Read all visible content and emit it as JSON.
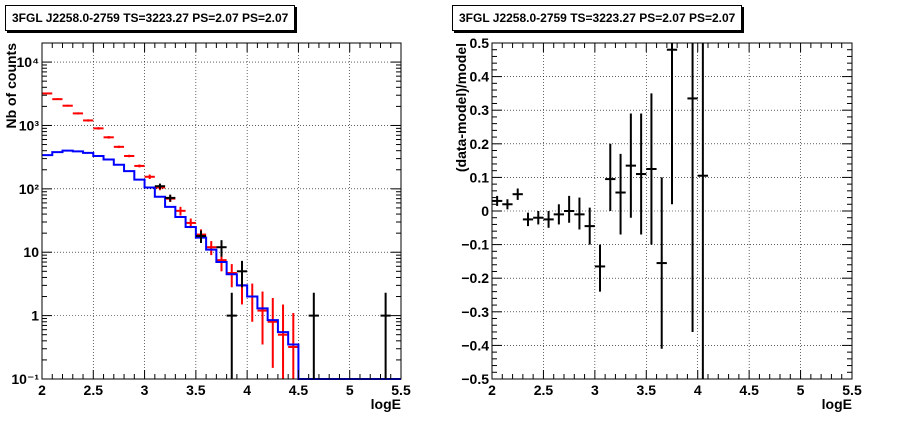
{
  "chart_data": [
    {
      "type": "line",
      "title": "3FGL J2258.0-2759 TS=3223.27 PS=2.07 PS=2.07",
      "xlabel": "logE",
      "ylabel": "Nb of counts",
      "xlim": [
        2,
        5.5
      ],
      "ylim": [
        0.1,
        20000
      ],
      "yscale": "log",
      "grid": true,
      "xticks": [
        "2",
        "2.5",
        "3",
        "3.5",
        "4",
        "4.5",
        "5",
        "5.5"
      ],
      "yticks": [
        {
          "value": 0.1,
          "label": "10⁻¹"
        },
        {
          "value": 1,
          "label": "1"
        },
        {
          "value": 10,
          "label": "10"
        },
        {
          "value": 100,
          "label": "10²"
        },
        {
          "value": 1000,
          "label": "10³"
        },
        {
          "value": 10000,
          "label": "10⁴"
        }
      ],
      "series": [
        {
          "color": "#ff0000",
          "style": "markers-errors",
          "points": [
            {
              "x": 2.05,
              "y": 3200,
              "lo": 3100,
              "hi": 3300
            },
            {
              "x": 2.15,
              "y": 2600,
              "lo": 2520,
              "hi": 2690
            },
            {
              "x": 2.25,
              "y": 2050,
              "lo": 1980,
              "hi": 2120
            },
            {
              "x": 2.35,
              "y": 1550,
              "lo": 1490,
              "hi": 1610
            },
            {
              "x": 2.45,
              "y": 1200,
              "lo": 1150,
              "hi": 1250
            },
            {
              "x": 2.55,
              "y": 900,
              "lo": 860,
              "hi": 940
            },
            {
              "x": 2.65,
              "y": 650,
              "lo": 620,
              "hi": 680
            },
            {
              "x": 2.75,
              "y": 460,
              "lo": 440,
              "hi": 480
            },
            {
              "x": 2.85,
              "y": 330,
              "lo": 315,
              "hi": 345
            },
            {
              "x": 2.95,
              "y": 230,
              "lo": 218,
              "hi": 242
            },
            {
              "x": 3.05,
              "y": 155,
              "lo": 143,
              "hi": 168
            },
            {
              "x": 3.15,
              "y": 105,
              "lo": 95,
              "hi": 115
            },
            {
              "x": 3.25,
              "y": 70,
              "lo": 62,
              "hi": 78
            },
            {
              "x": 3.35,
              "y": 45,
              "lo": 38,
              "hi": 52
            },
            {
              "x": 3.45,
              "y": 29,
              "lo": 24,
              "hi": 34
            },
            {
              "x": 3.55,
              "y": 19,
              "lo": 15,
              "hi": 23
            },
            {
              "x": 3.65,
              "y": 12,
              "lo": 9,
              "hi": 15
            },
            {
              "x": 3.75,
              "y": 7.5,
              "lo": 5,
              "hi": 10
            },
            {
              "x": 3.85,
              "y": 4.7,
              "lo": 2.8,
              "hi": 6.5
            },
            {
              "x": 3.95,
              "y": 3,
              "lo": 1.5,
              "hi": 4.5
            },
            {
              "x": 4.05,
              "y": 2,
              "lo": 0.8,
              "hi": 3.2
            },
            {
              "x": 4.15,
              "y": 1.2,
              "lo": 0.35,
              "hi": 2.4
            },
            {
              "x": 4.25,
              "y": 0.8,
              "lo": 0.15,
              "hi": 1.9
            },
            {
              "x": 4.35,
              "y": 0.5,
              "lo": 0.1,
              "hi": 1.5
            },
            {
              "x": 4.45,
              "y": 0.32,
              "lo": 0.1,
              "hi": 1.1
            }
          ]
        },
        {
          "color": "#0000ff",
          "style": "step",
          "bins": [
            {
              "x0": 2.0,
              "x1": 2.1,
              "y": 340
            },
            {
              "x0": 2.1,
              "x1": 2.2,
              "y": 380
            },
            {
              "x0": 2.2,
              "x1": 2.3,
              "y": 400
            },
            {
              "x0": 2.3,
              "x1": 2.4,
              "y": 390
            },
            {
              "x0": 2.4,
              "x1": 2.5,
              "y": 370
            },
            {
              "x0": 2.5,
              "x1": 2.6,
              "y": 330
            },
            {
              "x0": 2.6,
              "x1": 2.7,
              "y": 290
            },
            {
              "x0": 2.7,
              "x1": 2.8,
              "y": 240
            },
            {
              "x0": 2.8,
              "x1": 2.9,
              "y": 190
            },
            {
              "x0": 2.9,
              "x1": 3.0,
              "y": 140
            },
            {
              "x0": 3.0,
              "x1": 3.1,
              "y": 105
            },
            {
              "x0": 3.1,
              "x1": 3.2,
              "y": 75
            },
            {
              "x0": 3.2,
              "x1": 3.3,
              "y": 52
            },
            {
              "x0": 3.3,
              "x1": 3.4,
              "y": 36
            },
            {
              "x0": 3.4,
              "x1": 3.5,
              "y": 25
            },
            {
              "x0": 3.5,
              "x1": 3.6,
              "y": 17
            },
            {
              "x0": 3.6,
              "x1": 3.7,
              "y": 11
            },
            {
              "x0": 3.7,
              "x1": 3.8,
              "y": 7
            },
            {
              "x0": 3.8,
              "x1": 3.9,
              "y": 4.5
            },
            {
              "x0": 3.9,
              "x1": 4.0,
              "y": 3
            },
            {
              "x0": 4.0,
              "x1": 4.1,
              "y": 2
            },
            {
              "x0": 4.1,
              "x1": 4.2,
              "y": 1.3
            },
            {
              "x0": 4.2,
              "x1": 4.3,
              "y": 0.85
            },
            {
              "x0": 4.3,
              "x1": 4.4,
              "y": 0.55
            },
            {
              "x0": 4.4,
              "x1": 4.5,
              "y": 0.35
            },
            {
              "x0": 4.5,
              "x1": 5.5,
              "y": 0.1
            }
          ]
        },
        {
          "color": "#000000",
          "style": "markers-errors",
          "points": [
            {
              "x": 3.15,
              "y": 110,
              "lo": 99,
              "hi": 121,
              "xerr": 0.05
            },
            {
              "x": 3.25,
              "y": 72,
              "lo": 63,
              "hi": 81,
              "xerr": 0.05
            },
            {
              "x": 3.55,
              "y": 18,
              "lo": 14,
              "hi": 22,
              "xerr": 0.05
            },
            {
              "x": 3.75,
              "y": 12,
              "lo": 8.5,
              "hi": 15.5,
              "xerr": 0.05
            },
            {
              "x": 3.85,
              "y": 1,
              "lo": 0.1,
              "hi": 2.3,
              "xerr": 0.05
            },
            {
              "x": 3.95,
              "y": 5,
              "lo": 2.8,
              "hi": 7.3,
              "xerr": 0.05
            },
            {
              "x": 4.65,
              "y": 1,
              "lo": 0.1,
              "hi": 2.3,
              "xerr": 0.05
            },
            {
              "x": 5.35,
              "y": 1,
              "lo": 0.1,
              "hi": 2.3,
              "xerr": 0.05
            }
          ]
        }
      ]
    },
    {
      "type": "scatter",
      "title": "3FGL J2258.0-2759 TS=3223.27 PS=2.07 PS=2.07",
      "xlabel": "logE",
      "ylabel": "(data-model)/model",
      "xlim": [
        2,
        5.5
      ],
      "ylim": [
        -0.5,
        0.5
      ],
      "grid": true,
      "xticks": [
        "2",
        "2.5",
        "3",
        "3.5",
        "4",
        "4.5",
        "5",
        "5.5"
      ],
      "yticks": [
        "−0.5",
        "−0.4",
        "−0.3",
        "−0.2",
        "−0.1",
        "0",
        "0.1",
        "0.2",
        "0.3",
        "0.4",
        "0.5"
      ],
      "series": [
        {
          "color": "#000000",
          "style": "markers-errors",
          "points": [
            {
              "x": 2.05,
              "y": 0.03,
              "lo": 0.015,
              "hi": 0.045
            },
            {
              "x": 2.15,
              "y": 0.02,
              "lo": 0.005,
              "hi": 0.035
            },
            {
              "x": 2.25,
              "y": 0.05,
              "lo": 0.033,
              "hi": 0.067
            },
            {
              "x": 2.35,
              "y": -0.025,
              "lo": -0.045,
              "hi": -0.005
            },
            {
              "x": 2.45,
              "y": -0.02,
              "lo": -0.04,
              "hi": 0.0
            },
            {
              "x": 2.55,
              "y": -0.025,
              "lo": -0.05,
              "hi": 0.0
            },
            {
              "x": 2.65,
              "y": -0.01,
              "lo": -0.04,
              "hi": 0.02
            },
            {
              "x": 2.75,
              "y": 0.0,
              "lo": -0.035,
              "hi": 0.045
            },
            {
              "x": 2.85,
              "y": -0.01,
              "lo": -0.055,
              "hi": 0.04
            },
            {
              "x": 2.95,
              "y": -0.045,
              "lo": -0.1,
              "hi": 0.01
            },
            {
              "x": 3.05,
              "y": -0.165,
              "lo": -0.24,
              "hi": -0.1
            },
            {
              "x": 3.15,
              "y": 0.095,
              "lo": 0.0,
              "hi": 0.2
            },
            {
              "x": 3.25,
              "y": 0.055,
              "lo": -0.07,
              "hi": 0.17
            },
            {
              "x": 3.35,
              "y": 0.135,
              "lo": -0.02,
              "hi": 0.29
            },
            {
              "x": 3.45,
              "y": 0.11,
              "lo": -0.07,
              "hi": 0.29
            },
            {
              "x": 3.55,
              "y": 0.125,
              "lo": -0.1,
              "hi": 0.35
            },
            {
              "x": 3.65,
              "y": -0.155,
              "lo": -0.41,
              "hi": 0.1
            },
            {
              "x": 3.75,
              "y": 0.48,
              "lo": 0.02,
              "hi": 0.5
            },
            {
              "x": 3.95,
              "y": 0.335,
              "lo": -0.36,
              "hi": 0.5
            },
            {
              "x": 4.05,
              "y": 0.105,
              "lo": -0.5,
              "hi": 0.5
            }
          ]
        }
      ]
    }
  ]
}
